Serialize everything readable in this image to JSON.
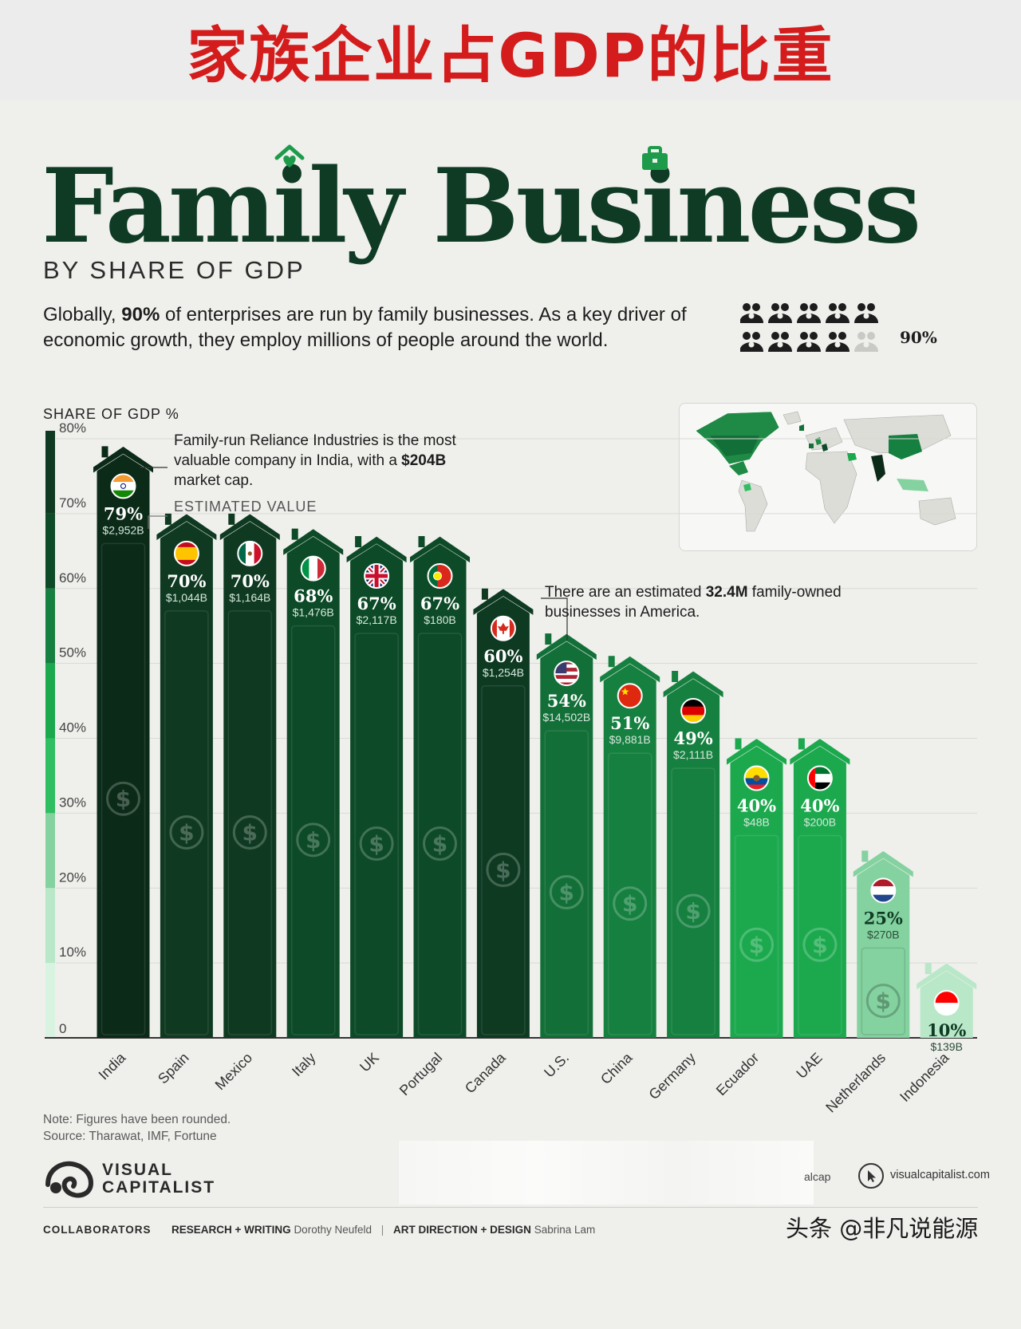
{
  "banner": {
    "title": "家族企业占GDP的比重"
  },
  "poster": {
    "title": "Family Business",
    "subtitle": "BY SHARE OF GDP",
    "intro_parts": [
      "Globally, ",
      "90%",
      " of enterprises are run by family businesses. As a key driver of economic growth, they employ millions of people around the world."
    ],
    "people_label": "90%",
    "axis_title": "SHARE OF GDP %",
    "annotation_india": [
      "Family-run Reliance Industries is the most valuable company in India, with a ",
      "$204B",
      " market cap."
    ],
    "estimated_label": "ESTIMATED VALUE",
    "annotation_us": [
      "There are an estimated ",
      "32.4M",
      " family-owned businesses in America."
    ],
    "note": "Note: Figures have been rounded.",
    "source": "Source: Tharawat, IMF, Fortune",
    "logo_line1": "VISUAL",
    "logo_line2": "CAPITALIST",
    "footer_fragment": "alcap",
    "site": "visualcapitalist.com",
    "collaborators_label": "COLLABORATORS",
    "research_label": "RESEARCH + WRITING",
    "research_name": "Dorothy Neufeld",
    "design_label": "ART DIRECTION + DESIGN",
    "design_name": "Sabrina Lam",
    "watermark": "头条 @非凡说能源"
  },
  "chart_data": {
    "type": "bar",
    "title": "Family Business",
    "ylabel": "SHARE OF GDP %",
    "ylim": [
      0,
      80
    ],
    "yticks": [
      "0",
      "10%",
      "20%",
      "30%",
      "40%",
      "50%",
      "60%",
      "70%",
      "80%"
    ],
    "categories": [
      "India",
      "Spain",
      "Mexico",
      "Italy",
      "UK",
      "Portugal",
      "Canada",
      "U.S.",
      "China",
      "Germany",
      "Ecuador",
      "UAE",
      "Netherlands",
      "Indonesia"
    ],
    "values": [
      79,
      70,
      70,
      68,
      67,
      67,
      60,
      54,
      51,
      49,
      40,
      40,
      25,
      10
    ],
    "value_labels": [
      "79%",
      "70%",
      "70%",
      "68%",
      "67%",
      "67%",
      "60%",
      "54%",
      "51%",
      "49%",
      "40%",
      "40%",
      "25%",
      "10%"
    ],
    "estimated_values": [
      "$2,952B",
      "$1,044B",
      "$1,164B",
      "$1,476B",
      "$2,117B",
      "$180B",
      "$1,254B",
      "$14,502B",
      "$9,881B",
      "$2,111B",
      "$48B",
      "$200B",
      "$270B",
      "$139B"
    ],
    "colors": [
      "#0b2a18",
      "#0f3a21",
      "#0f3a21",
      "#0d4a27",
      "#0d4a27",
      "#0d4a27",
      "#0e3a22",
      "#136f38",
      "#168040",
      "#168040",
      "#1ca94e",
      "#1ca94e",
      "#84d2a0",
      "#b8e8c8"
    ],
    "flags": [
      "india",
      "spain",
      "mexico",
      "italy",
      "uk",
      "portugal",
      "canada",
      "us",
      "china",
      "germany",
      "ecuador",
      "uae",
      "netherlands",
      "indonesia"
    ],
    "scale_colors": [
      "#d9f3e1",
      "#b8e8c8",
      "#84d2a0",
      "#2fbf62",
      "#1ca94e",
      "#168040",
      "#0d4a27",
      "#0f3a21"
    ],
    "grid": true
  }
}
